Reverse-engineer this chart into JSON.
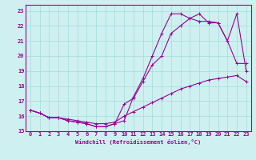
{
  "xlabel": "Windchill (Refroidissement éolien,°C)",
  "bg_color": "#cff0f0",
  "line_color": "#990099",
  "grid_color": "#aadddd",
  "xlim": [
    -0.5,
    23.5
  ],
  "ylim": [
    15,
    23.4
  ],
  "xticks": [
    0,
    1,
    2,
    3,
    4,
    5,
    6,
    7,
    8,
    9,
    10,
    11,
    12,
    13,
    14,
    15,
    16,
    17,
    18,
    19,
    20,
    21,
    22,
    23
  ],
  "yticks": [
    15,
    16,
    17,
    18,
    19,
    20,
    21,
    22,
    23
  ],
  "curve_bottom_x": [
    0,
    1,
    2,
    3,
    4,
    5,
    6,
    7,
    8,
    9,
    10,
    11,
    12,
    13,
    14,
    15,
    16,
    17,
    18,
    19,
    20,
    21,
    22,
    23
  ],
  "curve_bottom_y": [
    16.4,
    16.2,
    15.9,
    15.9,
    15.8,
    15.7,
    15.6,
    15.5,
    15.5,
    15.6,
    16.0,
    16.3,
    16.6,
    16.9,
    17.2,
    17.5,
    17.8,
    18.0,
    18.2,
    18.4,
    18.5,
    18.6,
    18.7,
    18.3
  ],
  "curve_mid_x": [
    0,
    1,
    2,
    3,
    4,
    5,
    6,
    7,
    8,
    9,
    10,
    11,
    12,
    13,
    14,
    15,
    16,
    17,
    18,
    19,
    20,
    21,
    22,
    23
  ],
  "curve_mid_y": [
    16.4,
    16.2,
    15.9,
    15.9,
    15.7,
    15.6,
    15.5,
    15.3,
    15.3,
    15.5,
    16.8,
    17.2,
    18.3,
    19.4,
    20.0,
    21.5,
    22.0,
    22.5,
    22.8,
    22.2,
    22.2,
    21.0,
    19.5,
    19.5
  ],
  "curve_top_x": [
    0,
    1,
    2,
    3,
    4,
    5,
    6,
    7,
    8,
    9,
    10,
    11,
    12,
    13,
    14,
    15,
    16,
    17,
    18,
    19,
    20,
    21,
    22,
    23
  ],
  "curve_top_y": [
    16.4,
    16.2,
    15.9,
    15.9,
    15.7,
    15.6,
    15.5,
    15.3,
    15.3,
    15.5,
    15.7,
    17.3,
    18.5,
    20.0,
    21.5,
    22.8,
    22.8,
    22.5,
    22.3,
    22.3,
    22.2,
    21.0,
    22.8,
    19.0
  ]
}
